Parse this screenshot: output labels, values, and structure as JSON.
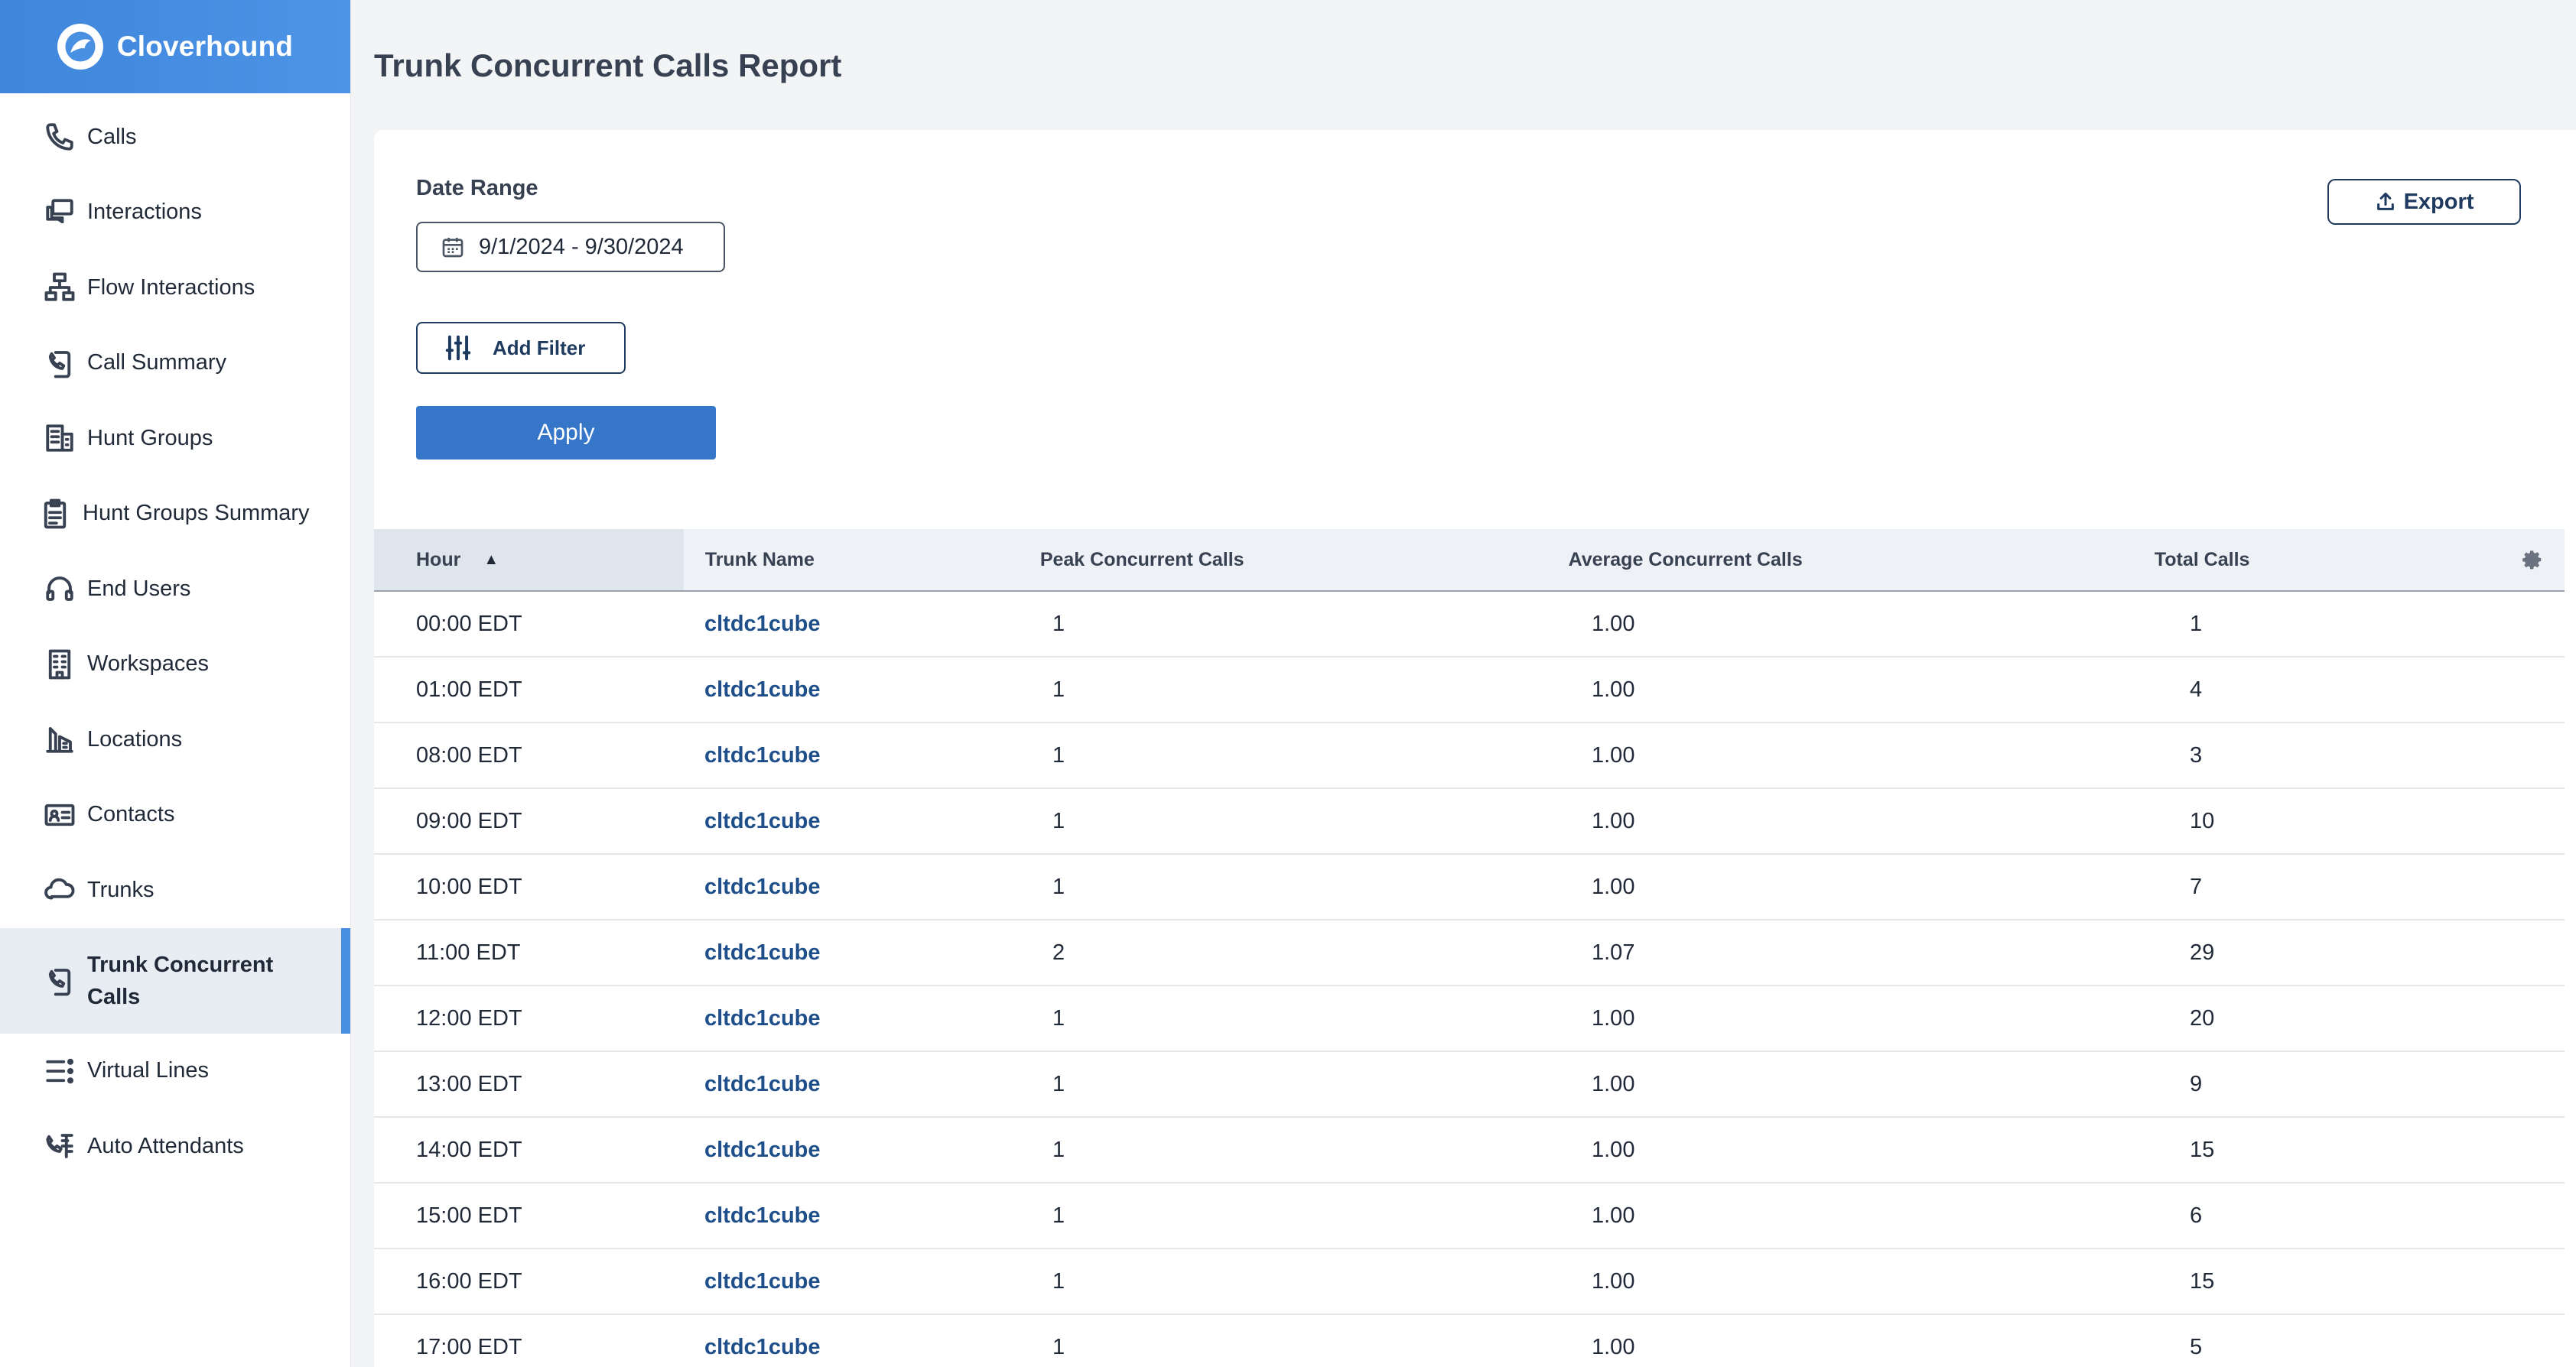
{
  "brand": {
    "name": "Cloverhound"
  },
  "sidebar": {
    "items": [
      {
        "label": "Calls",
        "icon": "phone-icon"
      },
      {
        "label": "Interactions",
        "icon": "chat-icon"
      },
      {
        "label": "Flow Interactions",
        "icon": "flow-icon"
      },
      {
        "label": "Call Summary",
        "icon": "call-summary-icon"
      },
      {
        "label": "Hunt Groups",
        "icon": "building-icon"
      },
      {
        "label": "Hunt Groups Summary",
        "icon": "clipboard-icon"
      },
      {
        "label": "End Users",
        "icon": "headset-icon"
      },
      {
        "label": "Workspaces",
        "icon": "office-icon"
      },
      {
        "label": "Locations",
        "icon": "location-icon"
      },
      {
        "label": "Contacts",
        "icon": "contact-card-icon"
      },
      {
        "label": "Trunks",
        "icon": "cloud-icon"
      },
      {
        "label": "Trunk Concurrent Calls",
        "icon": "trunk-calls-icon",
        "active": true
      },
      {
        "label": "Virtual Lines",
        "icon": "list-icon"
      },
      {
        "label": "Auto Attendants",
        "icon": "auto-attendant-icon"
      }
    ],
    "accent_color": "#4a90e2"
  },
  "page": {
    "title": "Trunk Concurrent Calls Report"
  },
  "filters": {
    "date_range_label": "Date Range",
    "date_range_value": "9/1/2024 - 9/30/2024",
    "add_filter_label": "Add Filter",
    "apply_label": "Apply",
    "export_label": "Export"
  },
  "table": {
    "columns": {
      "hour": "Hour",
      "trunk": "Trunk Name",
      "peak": "Peak Concurrent Calls",
      "avg": "Average Concurrent Calls",
      "total": "Total Calls"
    },
    "sort_indicator": "▲",
    "rows": [
      {
        "hour": "00:00 EDT",
        "trunk": "cltdc1cube",
        "peak": "1",
        "avg": "1.00",
        "total": "1"
      },
      {
        "hour": "01:00 EDT",
        "trunk": "cltdc1cube",
        "peak": "1",
        "avg": "1.00",
        "total": "4"
      },
      {
        "hour": "08:00 EDT",
        "trunk": "cltdc1cube",
        "peak": "1",
        "avg": "1.00",
        "total": "3"
      },
      {
        "hour": "09:00 EDT",
        "trunk": "cltdc1cube",
        "peak": "1",
        "avg": "1.00",
        "total": "10"
      },
      {
        "hour": "10:00 EDT",
        "trunk": "cltdc1cube",
        "peak": "1",
        "avg": "1.00",
        "total": "7"
      },
      {
        "hour": "11:00 EDT",
        "trunk": "cltdc1cube",
        "peak": "2",
        "avg": "1.07",
        "total": "29"
      },
      {
        "hour": "12:00 EDT",
        "trunk": "cltdc1cube",
        "peak": "1",
        "avg": "1.00",
        "total": "20"
      },
      {
        "hour": "13:00 EDT",
        "trunk": "cltdc1cube",
        "peak": "1",
        "avg": "1.00",
        "total": "9"
      },
      {
        "hour": "14:00 EDT",
        "trunk": "cltdc1cube",
        "peak": "1",
        "avg": "1.00",
        "total": "15"
      },
      {
        "hour": "15:00 EDT",
        "trunk": "cltdc1cube",
        "peak": "1",
        "avg": "1.00",
        "total": "6"
      },
      {
        "hour": "16:00 EDT",
        "trunk": "cltdc1cube",
        "peak": "1",
        "avg": "1.00",
        "total": "15"
      },
      {
        "hour": "17:00 EDT",
        "trunk": "cltdc1cube",
        "peak": "1",
        "avg": "1.00",
        "total": "5"
      }
    ]
  }
}
